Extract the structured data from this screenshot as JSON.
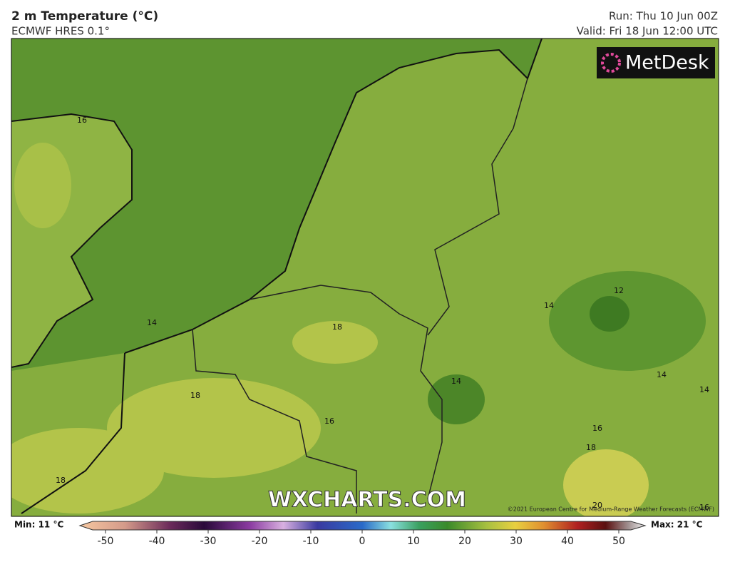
{
  "header": {
    "title": "2 m Temperature (°C)",
    "subtitle": "ECMWF HRES 0.1°",
    "run": "Run: Thu 10 Jun 00Z",
    "valid": "Valid: Fri 18 Jun 12:00 UTC"
  },
  "logo": "MetDesk",
  "watermark": "WXCHARTS.COM",
  "copyright": "©2021 European Centre for Medium-Range Weather Forecasts (ECMWF)",
  "contour_labels": [
    "16",
    "14",
    "18",
    "18",
    "16",
    "14",
    "14",
    "12",
    "14",
    "14",
    "16",
    "18",
    "18",
    "20",
    "16"
  ],
  "colorbar": {
    "min_label": "Min: 11 °C",
    "max_label": "Max: 21 °C",
    "ticks": [
      -50,
      -40,
      -30,
      -20,
      -10,
      0,
      10,
      20,
      30,
      40,
      50
    ]
  }
}
